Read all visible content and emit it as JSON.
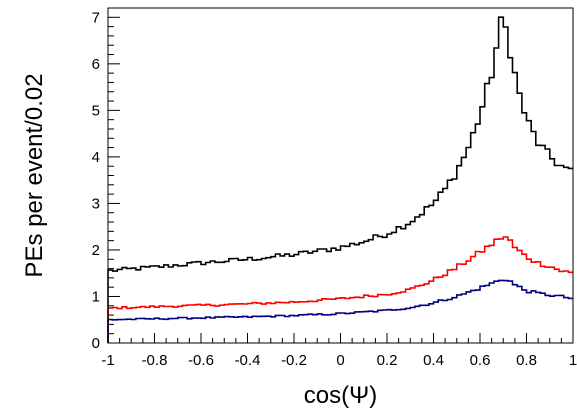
{
  "chart_data": {
    "type": "histogram-step",
    "xlabel": "cos(Ψ)",
    "ylabel": "PEs per event/0.02",
    "xlim": [
      -1,
      1
    ],
    "ylim": [
      0,
      7.2
    ],
    "bin_width": 0.02,
    "x_ticks": [
      {
        "value": -1,
        "label": "-1"
      },
      {
        "value": -0.8,
        "label": "-0.8"
      },
      {
        "value": -0.6,
        "label": "-0.6"
      },
      {
        "value": -0.4,
        "label": "-0.4"
      },
      {
        "value": -0.2,
        "label": "-0.2"
      },
      {
        "value": 0,
        "label": "0"
      },
      {
        "value": 0.2,
        "label": "0.2"
      },
      {
        "value": 0.4,
        "label": "0.4"
      },
      {
        "value": 0.6,
        "label": "0.6"
      },
      {
        "value": 0.8,
        "label": "0.8"
      },
      {
        "value": 1,
        "label": "1"
      }
    ],
    "y_ticks": [
      {
        "value": 0,
        "label": "0"
      },
      {
        "value": 1,
        "label": "1"
      },
      {
        "value": 2,
        "label": "2"
      },
      {
        "value": 3,
        "label": "3"
      },
      {
        "value": 4,
        "label": "4"
      },
      {
        "value": 5,
        "label": "5"
      },
      {
        "value": 6,
        "label": "6"
      },
      {
        "value": 7,
        "label": "7"
      }
    ],
    "series": [
      {
        "color": "#000000",
        "shape": "control-points (x in data units, y in data units)",
        "points": [
          [
            -1.0,
            1.55
          ],
          [
            -0.8,
            1.63
          ],
          [
            -0.6,
            1.72
          ],
          [
            -0.4,
            1.8
          ],
          [
            -0.2,
            1.9
          ],
          [
            0.0,
            2.05
          ],
          [
            0.1,
            2.18
          ],
          [
            0.2,
            2.35
          ],
          [
            0.3,
            2.6
          ],
          [
            0.4,
            3.0
          ],
          [
            0.45,
            3.3
          ],
          [
            0.5,
            3.7
          ],
          [
            0.55,
            4.2
          ],
          [
            0.6,
            4.9
          ],
          [
            0.65,
            5.8
          ],
          [
            0.68,
            6.6
          ],
          [
            0.69,
            6.85
          ],
          [
            0.71,
            6.75
          ],
          [
            0.73,
            6.3
          ],
          [
            0.76,
            5.5
          ],
          [
            0.8,
            4.8
          ],
          [
            0.85,
            4.3
          ],
          [
            0.9,
            4.0
          ],
          [
            0.95,
            3.8
          ],
          [
            1.0,
            3.65
          ]
        ]
      },
      {
        "color": "#ff0000",
        "shape": "control-points (x in data units, y in data units)",
        "points": [
          [
            -1.0,
            0.75
          ],
          [
            -0.8,
            0.78
          ],
          [
            -0.6,
            0.81
          ],
          [
            -0.4,
            0.84
          ],
          [
            -0.2,
            0.88
          ],
          [
            0.0,
            0.95
          ],
          [
            0.2,
            1.05
          ],
          [
            0.3,
            1.15
          ],
          [
            0.4,
            1.35
          ],
          [
            0.5,
            1.62
          ],
          [
            0.6,
            1.95
          ],
          [
            0.65,
            2.12
          ],
          [
            0.7,
            2.3
          ],
          [
            0.72,
            2.25
          ],
          [
            0.75,
            2.05
          ],
          [
            0.8,
            1.85
          ],
          [
            0.85,
            1.72
          ],
          [
            0.9,
            1.65
          ],
          [
            0.95,
            1.55
          ],
          [
            1.0,
            1.5
          ]
        ]
      },
      {
        "color": "#000080",
        "shape": "control-points (x in data units, y in data units)",
        "points": [
          [
            -1.0,
            0.5
          ],
          [
            -0.8,
            0.52
          ],
          [
            -0.6,
            0.54
          ],
          [
            -0.4,
            0.56
          ],
          [
            -0.2,
            0.59
          ],
          [
            0.0,
            0.63
          ],
          [
            0.2,
            0.7
          ],
          [
            0.3,
            0.76
          ],
          [
            0.4,
            0.86
          ],
          [
            0.5,
            1.0
          ],
          [
            0.6,
            1.18
          ],
          [
            0.65,
            1.28
          ],
          [
            0.7,
            1.38
          ],
          [
            0.72,
            1.36
          ],
          [
            0.75,
            1.25
          ],
          [
            0.8,
            1.12
          ],
          [
            0.85,
            1.07
          ],
          [
            0.9,
            1.03
          ],
          [
            0.95,
            1.0
          ],
          [
            1.0,
            0.95
          ]
        ]
      }
    ]
  }
}
